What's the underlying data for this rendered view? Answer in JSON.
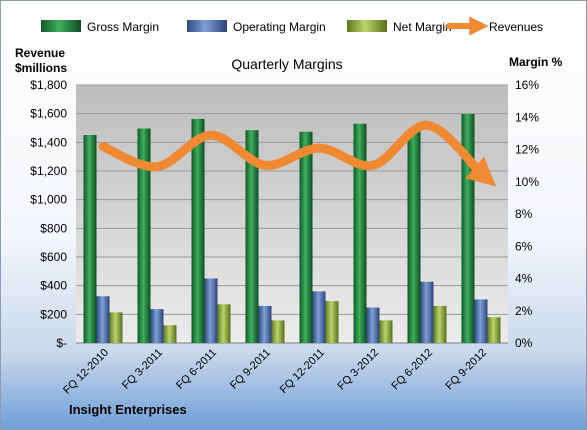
{
  "chart_data": {
    "type": "bar",
    "title": "Quarterly Margins",
    "left_axis_label_line1": "Revenue",
    "left_axis_label_line2": "$millions",
    "right_axis_label": "Margin %",
    "footer": "Insight Enterprises",
    "categories": [
      "FQ 12-2010",
      "FQ 3-2011",
      "FQ 6-2011",
      "FQ 9-2011",
      "FQ 12-2011",
      "FQ 3-2012",
      "FQ 6-2012",
      "FQ 9-2012"
    ],
    "left_axis": {
      "min": 0,
      "max": 1800,
      "step": 200,
      "tick_labels": [
        "$-",
        "$200",
        "$400",
        "$600",
        "$800",
        "$1,000",
        "$1,200",
        "$1,400",
        "$1,600",
        "$1,800"
      ]
    },
    "right_axis": {
      "min": 0,
      "max": 16,
      "step": 2,
      "tick_labels": [
        "0%",
        "2%",
        "4%",
        "6%",
        "8%",
        "10%",
        "12%",
        "14%",
        "16%"
      ]
    },
    "series": [
      {
        "name": "Gross Margin",
        "axis": "right",
        "color": "#1e7a3c",
        "values": [
          12.9,
          13.3,
          13.9,
          13.2,
          13.1,
          13.6,
          13.2,
          14.2
        ]
      },
      {
        "name": "Operating Margin",
        "axis": "right",
        "color": "#4f6fb0",
        "values": [
          2.9,
          2.1,
          4.0,
          2.3,
          3.2,
          2.2,
          3.8,
          2.7
        ]
      },
      {
        "name": "Net Margin",
        "axis": "right",
        "color": "#8fae3e",
        "values": [
          1.9,
          1.1,
          2.4,
          1.4,
          2.6,
          1.4,
          2.3,
          1.6
        ]
      },
      {
        "name": "Revenues",
        "axis": "left",
        "color": "#f08a32",
        "type": "line",
        "values": [
          1370,
          1230,
          1450,
          1240,
          1360,
          1240,
          1520,
          1185
        ]
      }
    ],
    "grid": true,
    "legend_position": "top"
  }
}
